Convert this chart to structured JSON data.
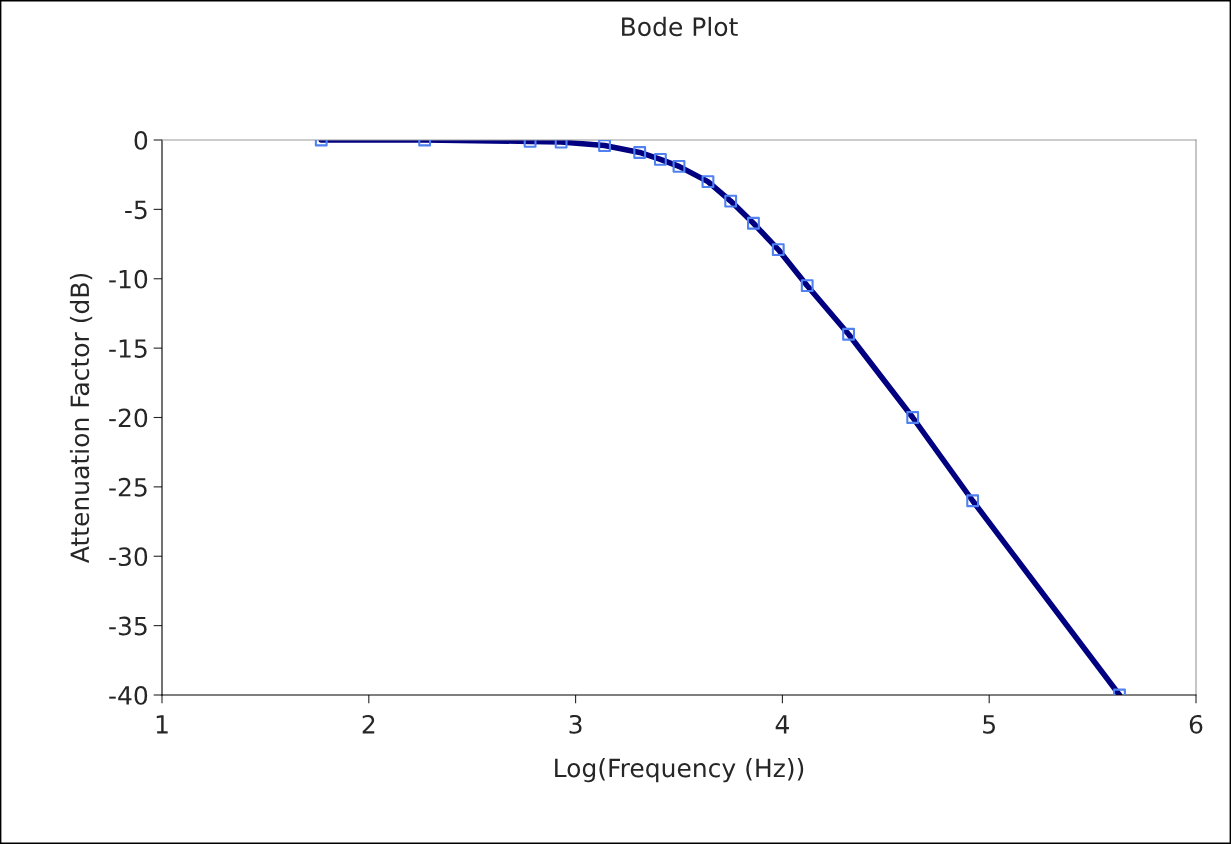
{
  "chart_data": {
    "type": "line",
    "title": "Bode Plot",
    "xlabel": "Log(Frequency (Hz))",
    "ylabel": "Attenuation Factor (dB)",
    "x": [
      1.77,
      2.27,
      2.78,
      2.93,
      3.14,
      3.31,
      3.41,
      3.5,
      3.64,
      3.75,
      3.86,
      3.98,
      4.12,
      4.32,
      4.63,
      4.92,
      5.63
    ],
    "series": [
      {
        "color": "#000080",
        "colors": [
          "#4f81f0",
          "#4f81f0",
          "#4f81f0",
          "#4f81f0",
          "#4f81f0",
          "#4f81f0",
          "#4f81f0",
          "#4f81f0",
          "#4f81f0",
          "#4f81f0",
          "#4f81f0",
          "#4f81f0",
          "#4f81f0",
          "#4f81f0",
          "#4f81f0",
          "#4f81f0",
          "#4f81f0"
        ],
        "values": [
          0,
          0,
          -0.1,
          -0.15,
          -0.4,
          -0.9,
          -1.4,
          -1.9,
          -3.0,
          -4.4,
          -6.0,
          -7.9,
          -10.5,
          -14.0,
          -20.0,
          -26.0,
          -40
        ]
      }
    ],
    "xlim": [
      1,
      6
    ],
    "xticks": [
      1,
      2,
      3,
      4,
      5,
      6
    ],
    "ylim": [
      -40,
      0
    ],
    "yticks": [
      -40,
      -35,
      -30,
      -25,
      -20,
      -15,
      -10,
      -5,
      0
    ],
    "grid": false,
    "marker": "square",
    "line_style": "solid"
  }
}
